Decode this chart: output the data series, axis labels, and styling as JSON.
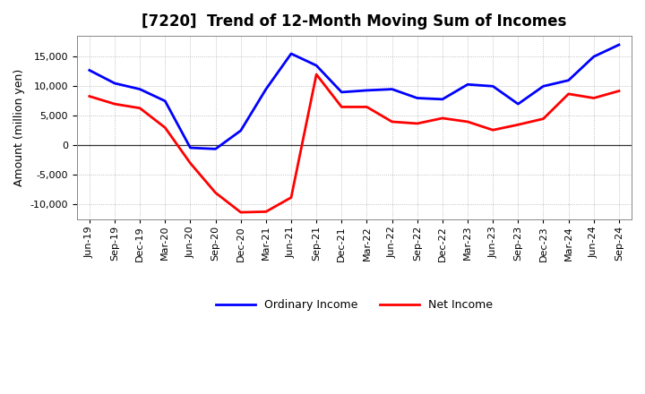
{
  "title": "[7220]  Trend of 12-Month Moving Sum of Incomes",
  "ylabel": "Amount (million yen)",
  "labels": [
    "Jun-19",
    "Sep-19",
    "Dec-19",
    "Mar-20",
    "Jun-20",
    "Sep-20",
    "Dec-20",
    "Mar-21",
    "Jun-21",
    "Sep-21",
    "Dec-21",
    "Mar-22",
    "Jun-22",
    "Sep-22",
    "Dec-22",
    "Mar-23",
    "Jun-23",
    "Sep-23",
    "Dec-23",
    "Mar-24",
    "Jun-24",
    "Sep-24"
  ],
  "ordinary_income": [
    12700,
    10500,
    9500,
    7500,
    -400,
    -600,
    2500,
    9500,
    15500,
    13500,
    9000,
    9300,
    9500,
    8000,
    7800,
    10300,
    10000,
    7000,
    10000,
    11000,
    15000,
    17000
  ],
  "net_income": [
    8300,
    7000,
    6300,
    3000,
    -3000,
    -8000,
    -11300,
    -11200,
    -8800,
    12000,
    6500,
    6500,
    4000,
    3700,
    4600,
    4000,
    2600,
    3500,
    4500,
    8700,
    8000,
    9200
  ],
  "ordinary_color": "#0000ff",
  "net_color": "#ff0000",
  "ylim": [
    -12500,
    18500
  ],
  "yticks": [
    -10000,
    -5000,
    0,
    5000,
    10000,
    15000
  ],
  "background_color": "#ffffff",
  "grid_color": "#b0b0b0",
  "title_fontsize": 12,
  "ylabel_fontsize": 9,
  "tick_fontsize": 8,
  "legend_fontsize": 9,
  "linewidth": 2.0
}
